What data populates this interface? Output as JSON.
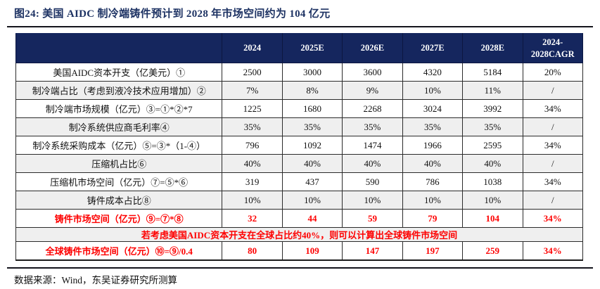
{
  "figure": {
    "title": "图24:  美国 AIDC 制冷端铸件预计到 2028 年市场空间约为 104 亿元",
    "source": "数据来源：Wind，东吴证券研究所测算"
  },
  "colors": {
    "header_bg": "#15265e",
    "title_text": "#1d3263",
    "emphasis_red": "#fe0000",
    "stripe_gray": "#efefef"
  },
  "table": {
    "columns": [
      "",
      "2024",
      "2025E",
      "2026E",
      "2027E",
      "2028E",
      "2024-2028CAGR"
    ],
    "rows": [
      {
        "label": "美国AIDC资本开支（亿美元）①",
        "values": [
          "2500",
          "3000",
          "3600",
          "4320",
          "5184",
          "20%"
        ],
        "emphasis": false,
        "merged": false
      },
      {
        "label": "制冷端占比（考虑到液冷技术应用增加）②",
        "values": [
          "7%",
          "8%",
          "9%",
          "10%",
          "11%",
          "/"
        ],
        "emphasis": false,
        "merged": false
      },
      {
        "label": "制冷端市场规模（亿元）③=①*②*7",
        "values": [
          "1225",
          "1680",
          "2268",
          "3024",
          "3992",
          "34%"
        ],
        "emphasis": false,
        "merged": false
      },
      {
        "label": "制冷系统供应商毛利率④",
        "values": [
          "35%",
          "35%",
          "35%",
          "35%",
          "35%",
          "/"
        ],
        "emphasis": false,
        "merged": false
      },
      {
        "label": "制冷系统采购成本（亿元）⑤=③*（1-④）",
        "values": [
          "796",
          "1092",
          "1474",
          "1966",
          "2595",
          "34%"
        ],
        "emphasis": false,
        "merged": false
      },
      {
        "label": "压缩机占比⑥",
        "values": [
          "40%",
          "40%",
          "40%",
          "40%",
          "40%",
          "/"
        ],
        "emphasis": false,
        "merged": false
      },
      {
        "label": "压缩机市场空间（亿元）⑦=⑤*⑥",
        "values": [
          "319",
          "437",
          "590",
          "786",
          "1038",
          "34%"
        ],
        "emphasis": false,
        "merged": false
      },
      {
        "label": "铸件成本占比⑧",
        "values": [
          "10%",
          "10%",
          "10%",
          "10%",
          "10%",
          "/"
        ],
        "emphasis": false,
        "merged": false
      },
      {
        "label": "铸件市场空间（亿元）⑨=⑦*⑧",
        "values": [
          "32",
          "44",
          "59",
          "79",
          "104",
          "34%"
        ],
        "emphasis": true,
        "merged": false
      },
      {
        "label": "若考虑美国AIDC资本开支在全球占比约40%，则可以计算出全球铸件市场空间",
        "values": [],
        "emphasis": true,
        "merged": true
      },
      {
        "label": "全球铸件市场空间（亿元）⑩=⑨/0.4",
        "values": [
          "80",
          "109",
          "147",
          "197",
          "259",
          "34%"
        ],
        "emphasis": true,
        "merged": false
      }
    ]
  }
}
